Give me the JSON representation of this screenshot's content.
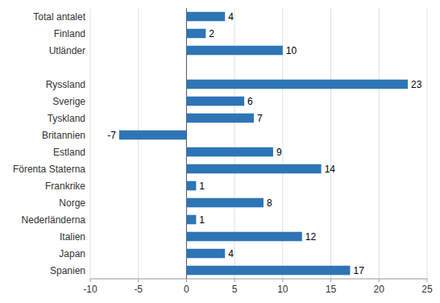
{
  "chart_data": {
    "type": "bar",
    "orientation": "horizontal",
    "categories": [
      "Spanien",
      "Japan",
      "Italien",
      "Nederländerna",
      "Norge",
      "Frankrike",
      "Förenta Staterna",
      "Estland",
      "Britannien",
      "Tyskland",
      "Sverige",
      "Ryssland",
      null,
      "Utländer",
      "Finland",
      "Total antalet"
    ],
    "values": [
      17,
      4,
      12,
      1,
      8,
      1,
      14,
      9,
      -7,
      7,
      6,
      23,
      null,
      10,
      2,
      4
    ],
    "color": "#2E75B6",
    "xlim": [
      -10,
      25
    ],
    "xticks": [
      -10,
      -5,
      0,
      5,
      10,
      15,
      20,
      25
    ],
    "grid": true,
    "data_labels": true
  }
}
